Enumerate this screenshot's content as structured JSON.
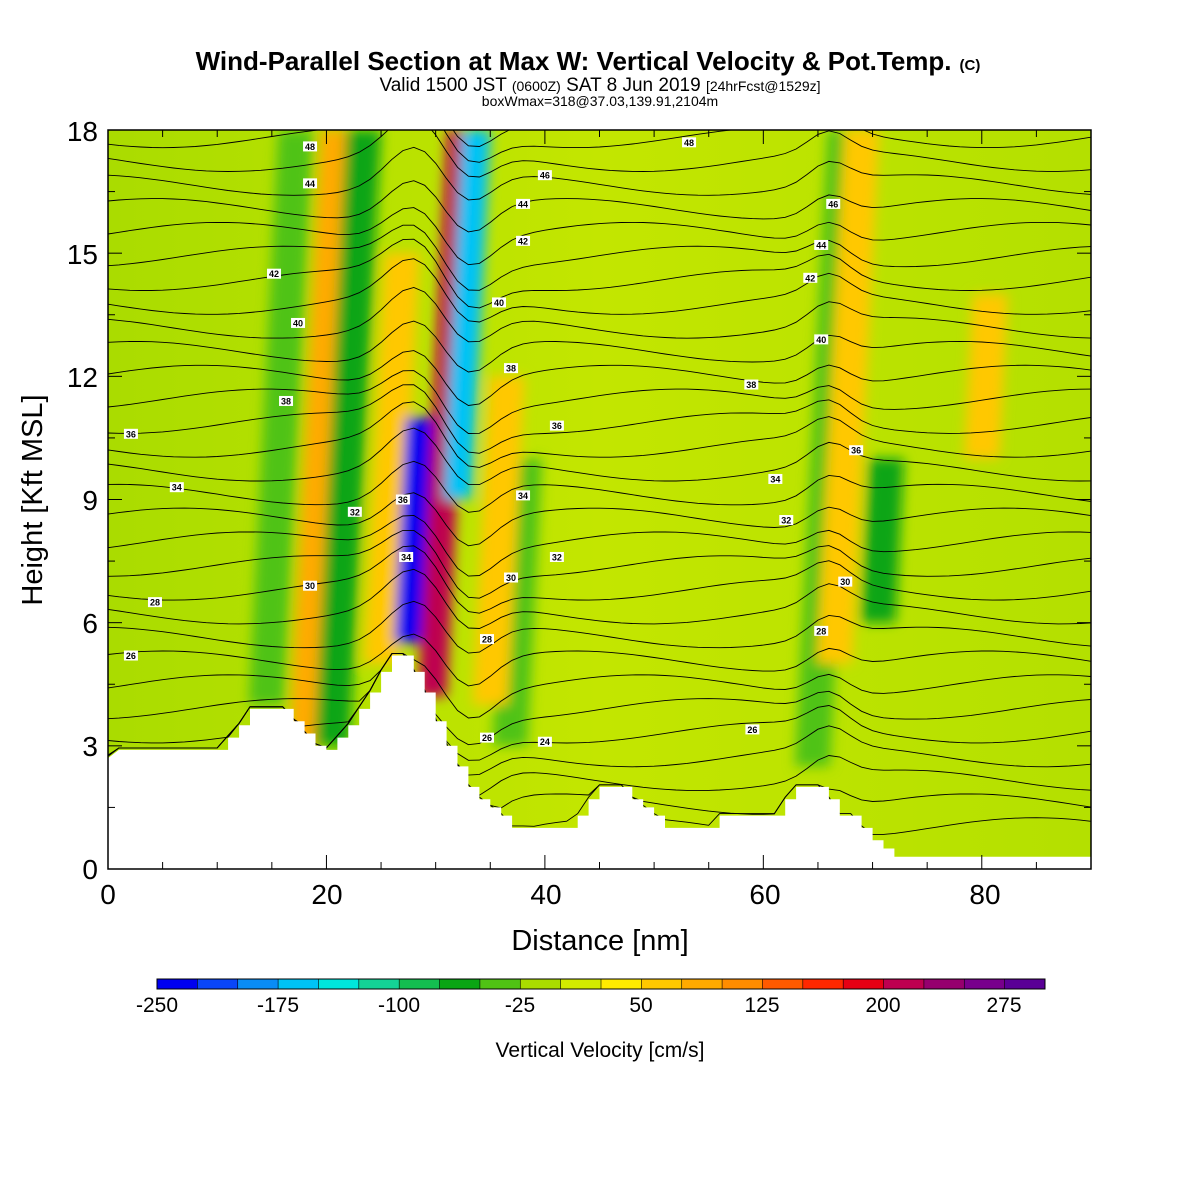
{
  "chart_data": {
    "type": "heatmap",
    "title": "Wind-Parallel Section at Max W: Vertical Velocity & Pot.Temp.",
    "title_mark": "(C)",
    "subtitle_parts": [
      "Valid 1500 JST",
      "(0600Z)",
      "SAT 8 Jun 2019",
      "[24hrFcst@1529z]"
    ],
    "subtitle2": "boxWmax=318@37.03,139.91,2104m",
    "xlabel": "Distance [nm]",
    "ylabel": "Height [Kft MSL]",
    "xlim": [
      0,
      90
    ],
    "ylim": [
      0,
      18
    ],
    "x_ticks": [
      "0",
      "20",
      "40",
      "60",
      "80"
    ],
    "y_ticks": [
      "0",
      "3",
      "6",
      "9",
      "12",
      "15",
      "18"
    ],
    "colorbar": {
      "label": "Vertical Velocity [cm/s]",
      "min": -250,
      "max": 300,
      "step": 25,
      "tick_labels": [
        "-250",
        "-175",
        "-100",
        "-25",
        "50",
        "125",
        "200",
        "275"
      ],
      "colors": [
        "#0000f0",
        "#0a46f8",
        "#0a8cf5",
        "#00c3f5",
        "#00e6dc",
        "#14d296",
        "#14be50",
        "#0aa514",
        "#50c314",
        "#aadc00",
        "#d2eb00",
        "#ffeb00",
        "#ffc800",
        "#ffaa00",
        "#ff8c00",
        "#ff5a00",
        "#ff2800",
        "#e60014",
        "#be0050",
        "#96006e",
        "#78008c",
        "#5a0096"
      ]
    },
    "vertical_velocity_features": [
      {
        "x": 14.5,
        "y_bottom": 4.0,
        "y_top": 18,
        "value": -40
      },
      {
        "x": 18.2,
        "y_bottom": 3.0,
        "y_top": 18,
        "value": 80
      },
      {
        "x": 20.5,
        "y_bottom": 3.0,
        "y_top": 18,
        "value": -60
      },
      {
        "x": 25.0,
        "y_bottom": 5.0,
        "y_top": 15,
        "value": 60
      },
      {
        "x": 27.5,
        "y_bottom": 5.5,
        "y_top": 11,
        "value": -230
      },
      {
        "x": 29.7,
        "y_bottom": 4.2,
        "y_top": 18,
        "value": 200
      },
      {
        "x": 32.0,
        "y_bottom": 9.0,
        "y_top": 18,
        "value": -160
      },
      {
        "x": 36.8,
        "y_bottom": 3.0,
        "y_top": 10,
        "value": -40
      },
      {
        "x": 35.0,
        "y_bottom": 4.0,
        "y_top": 12,
        "value": 70
      },
      {
        "x": 64.5,
        "y_bottom": 2.5,
        "y_top": 18,
        "value": -50
      },
      {
        "x": 66.5,
        "y_bottom": 5.0,
        "y_top": 18,
        "value": 70
      },
      {
        "x": 70.5,
        "y_bottom": 6.0,
        "y_top": 10,
        "value": -60
      },
      {
        "x": 80.0,
        "y_bottom": 10.0,
        "y_top": 14,
        "value": 50
      }
    ],
    "terrain": [
      [
        0,
        2.7
      ],
      [
        1,
        2.9
      ],
      [
        11,
        2.9
      ],
      [
        11,
        3.2
      ],
      [
        12,
        3.2
      ],
      [
        12,
        3.5
      ],
      [
        13,
        3.5
      ],
      [
        13,
        3.9
      ],
      [
        17,
        3.9
      ],
      [
        17,
        3.6
      ],
      [
        18,
        3.6
      ],
      [
        18,
        3.3
      ],
      [
        19,
        3.3
      ],
      [
        19,
        3.0
      ],
      [
        20,
        3.0
      ],
      [
        20,
        2.9
      ],
      [
        21,
        2.9
      ],
      [
        21,
        3.2
      ],
      [
        22,
        3.2
      ],
      [
        22,
        3.5
      ],
      [
        23,
        3.5
      ],
      [
        23,
        3.9
      ],
      [
        24,
        3.9
      ],
      [
        24,
        4.3
      ],
      [
        25,
        4.3
      ],
      [
        25,
        4.8
      ],
      [
        26,
        4.8
      ],
      [
        26,
        5.2
      ],
      [
        28,
        5.2
      ],
      [
        28,
        4.8
      ],
      [
        29,
        4.8
      ],
      [
        29,
        4.3
      ],
      [
        30,
        4.3
      ],
      [
        30,
        3.6
      ],
      [
        31,
        3.6
      ],
      [
        31,
        3.0
      ],
      [
        32,
        3.0
      ],
      [
        32,
        2.5
      ],
      [
        33,
        2.5
      ],
      [
        33,
        2.0
      ],
      [
        34,
        2.0
      ],
      [
        34,
        1.7
      ],
      [
        35,
        1.7
      ],
      [
        35,
        1.5
      ],
      [
        36,
        1.5
      ],
      [
        36,
        1.3
      ],
      [
        37,
        1.3
      ],
      [
        37,
        1.0
      ],
      [
        43,
        1.0
      ],
      [
        43,
        1.3
      ],
      [
        44,
        1.3
      ],
      [
        44,
        1.7
      ],
      [
        45,
        1.7
      ],
      [
        45,
        2.0
      ],
      [
        48,
        2.0
      ],
      [
        48,
        1.7
      ],
      [
        49,
        1.7
      ],
      [
        49,
        1.5
      ],
      [
        50,
        1.5
      ],
      [
        50,
        1.3
      ],
      [
        51,
        1.3
      ],
      [
        51,
        1.0
      ],
      [
        56,
        1.0
      ],
      [
        56,
        1.3
      ],
      [
        62,
        1.3
      ],
      [
        62,
        1.7
      ],
      [
        63,
        1.7
      ],
      [
        63,
        2.0
      ],
      [
        66,
        2.0
      ],
      [
        66,
        1.7
      ],
      [
        67,
        1.7
      ],
      [
        67,
        1.3
      ],
      [
        69,
        1.3
      ],
      [
        69,
        1.0
      ],
      [
        70,
        1.0
      ],
      [
        70,
        0.7
      ],
      [
        71,
        0.7
      ],
      [
        71,
        0.5
      ],
      [
        72,
        0.5
      ],
      [
        72,
        0.3
      ],
      [
        90,
        0.3
      ]
    ],
    "pot_temp_contour_labels": [
      {
        "text": "48",
        "x": 18.5,
        "y": 17.6
      },
      {
        "text": "44",
        "x": 18.5,
        "y": 16.7
      },
      {
        "text": "42",
        "x": 15.2,
        "y": 14.5
      },
      {
        "text": "40",
        "x": 17.4,
        "y": 13.3
      },
      {
        "text": "38",
        "x": 16.3,
        "y": 11.4
      },
      {
        "text": "36",
        "x": 2.1,
        "y": 10.6
      },
      {
        "text": "34",
        "x": 6.3,
        "y": 9.3
      },
      {
        "text": "32",
        "x": 22.6,
        "y": 8.7
      },
      {
        "text": "36",
        "x": 27.0,
        "y": 9.0
      },
      {
        "text": "34",
        "x": 27.3,
        "y": 7.6
      },
      {
        "text": "30",
        "x": 18.5,
        "y": 6.9
      },
      {
        "text": "28",
        "x": 4.3,
        "y": 6.5
      },
      {
        "text": "26",
        "x": 2.1,
        "y": 5.2
      },
      {
        "text": "48",
        "x": 53.2,
        "y": 17.7
      },
      {
        "text": "46",
        "x": 40.0,
        "y": 16.9
      },
      {
        "text": "44",
        "x": 38.0,
        "y": 16.2
      },
      {
        "text": "42",
        "x": 38.0,
        "y": 15.3
      },
      {
        "text": "40",
        "x": 35.8,
        "y": 13.8
      },
      {
        "text": "38",
        "x": 36.9,
        "y": 12.2
      },
      {
        "text": "36",
        "x": 41.1,
        "y": 10.8
      },
      {
        "text": "34",
        "x": 38.0,
        "y": 9.1
      },
      {
        "text": "32",
        "x": 41.1,
        "y": 7.6
      },
      {
        "text": "30",
        "x": 36.9,
        "y": 7.1
      },
      {
        "text": "28",
        "x": 34.7,
        "y": 5.6
      },
      {
        "text": "26",
        "x": 34.7,
        "y": 3.2
      },
      {
        "text": "24",
        "x": 40.0,
        "y": 3.1
      },
      {
        "text": "46",
        "x": 66.4,
        "y": 16.2
      },
      {
        "text": "44",
        "x": 65.3,
        "y": 15.2
      },
      {
        "text": "42",
        "x": 64.3,
        "y": 14.4
      },
      {
        "text": "40",
        "x": 65.3,
        "y": 12.9
      },
      {
        "text": "38",
        "x": 58.9,
        "y": 11.8
      },
      {
        "text": "36",
        "x": 68.5,
        "y": 10.2
      },
      {
        "text": "34",
        "x": 61.1,
        "y": 9.5
      },
      {
        "text": "32",
        "x": 62.1,
        "y": 8.5
      },
      {
        "text": "30",
        "x": 67.5,
        "y": 7.0
      },
      {
        "text": "28",
        "x": 65.3,
        "y": 5.8
      },
      {
        "text": "26",
        "x": 59.0,
        "y": 3.4
      }
    ]
  }
}
